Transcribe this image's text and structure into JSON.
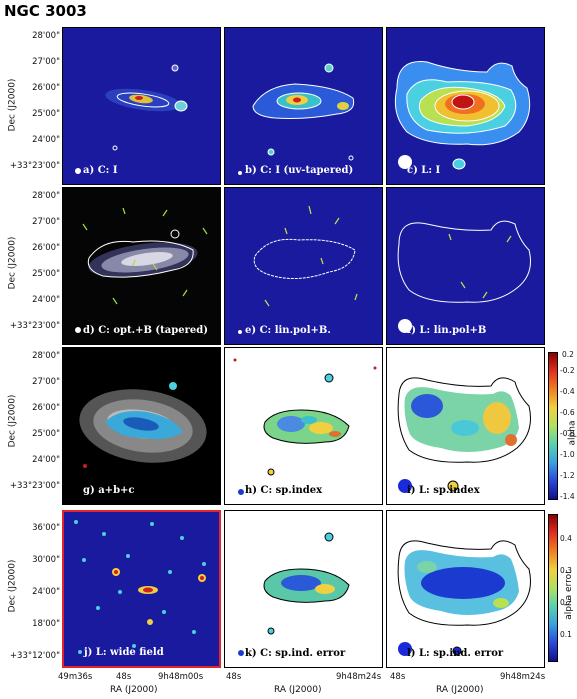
{
  "figure_title": "NGC 3003",
  "y_axis": {
    "label": "Dec (J2000)",
    "rows_1_3_ticks": [
      "28'00\"",
      "27'00\"",
      "26'00\"",
      "25'00\"",
      "24'00\"",
      "+33°23'00\""
    ],
    "row_4_ticks": [
      "36'00\"",
      "30'00\"",
      "24'00\"",
      "18'00\"",
      "+33°12'00\""
    ]
  },
  "x_axis": {
    "label": "RA (J2000)",
    "col1_ticks": [
      "49m36s",
      "48s",
      "9h48m00s"
    ],
    "col2_ticks": [
      "48s",
      "9h48m24s"
    ],
    "col3_ticks": [
      "48s",
      "9h48m24s"
    ]
  },
  "panels": {
    "a": "a) C: I",
    "b": "b) C: I (uv-tapered)",
    "c": "c) L: I",
    "d": "d) C: opt.+B (tapered)",
    "e": "e) C: lin.pol+B.",
    "f": "f) L: lin.pol+B",
    "g": "g)   a+b+c",
    "h": "h) C: sp.index",
    "i": "i) L: sp.index",
    "j": "j) L: wide field",
    "k": "k) C: sp.ind. error",
    "l": "l) L: sp.ind. error"
  },
  "colorbar_alpha": {
    "label": "alpha",
    "ticks": [
      "-0.2",
      "-0.4",
      "-0.6",
      "-0.8",
      "-1.0",
      "-1.2",
      "-1.4"
    ],
    "extra": "0.2"
  },
  "colorbar_error": {
    "label": "alpha error",
    "ticks": [
      "0.4",
      "0.3",
      "0.2",
      "0.1"
    ]
  },
  "colors": {
    "map_bg": "#1a1a9e",
    "selected_border": "#e0262b"
  }
}
